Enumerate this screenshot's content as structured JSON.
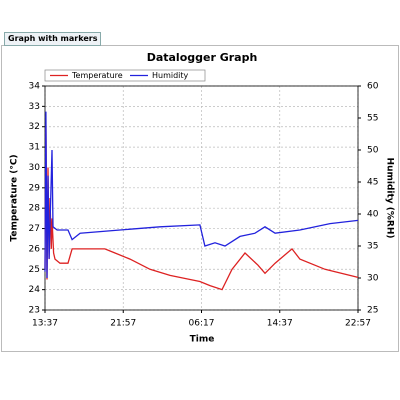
{
  "tab": "Graph with markers",
  "chart_data": {
    "type": "line",
    "title": "Datalogger Graph",
    "x_label": "Time",
    "y_label": "Temperature (°C)",
    "y2_label": "Humidity (%RH)",
    "xlim": [
      0,
      2000
    ],
    "xticks": [
      {
        "value": 0,
        "label": "13:37"
      },
      {
        "value": 500,
        "label": "21:57"
      },
      {
        "value": 1000,
        "label": "06:17"
      },
      {
        "value": 1500,
        "label": "14:37"
      },
      {
        "value": 2000,
        "label": "22:57"
      }
    ],
    "ylim": [
      23,
      34
    ],
    "yticks": [
      23,
      24,
      25,
      26,
      27,
      28,
      29,
      30,
      31,
      32,
      33,
      34
    ],
    "y2lim": [
      25,
      60
    ],
    "y2ticks": [
      25,
      30,
      35,
      40,
      45,
      50,
      55,
      60
    ],
    "grid": true,
    "legend": "top",
    "series": [
      {
        "name": "Temperature",
        "color": "#dd2222",
        "x": [
          0,
          6,
          13,
          19,
          26,
          32,
          40,
          45,
          55,
          64,
          96,
          147,
          173,
          383,
          447,
          543,
          671,
          799,
          927,
          990,
          1054,
          1131,
          1195,
          1278,
          1361,
          1406,
          1470,
          1578,
          1629,
          1789,
          2000
        ],
        "values": [
          25,
          32,
          24.5,
          30,
          25.5,
          28.5,
          26,
          27.5,
          25.8,
          25.5,
          25.3,
          25.3,
          26,
          26,
          25.8,
          25.5,
          25,
          24.7,
          24.5,
          24.4,
          24.2,
          24,
          25,
          25.8,
          25.2,
          24.8,
          25.3,
          26,
          25.5,
          25,
          24.6
        ]
      },
      {
        "name": "Humidity",
        "color": "#2222dd",
        "axis": "y2",
        "x": [
          0,
          6,
          13,
          19,
          26,
          45,
          51,
          77,
          147,
          173,
          224,
          479,
          735,
          990,
          1022,
          1086,
          1150,
          1246,
          1342,
          1406,
          1470,
          1629,
          1821,
          2000
        ],
        "values": [
          31,
          56,
          30,
          46,
          33,
          50,
          38,
          37.5,
          37.5,
          36,
          37,
          37.5,
          38,
          38.3,
          35,
          35.5,
          35,
          36.5,
          37,
          38,
          37,
          37.5,
          38.5,
          39
        ]
      }
    ]
  }
}
